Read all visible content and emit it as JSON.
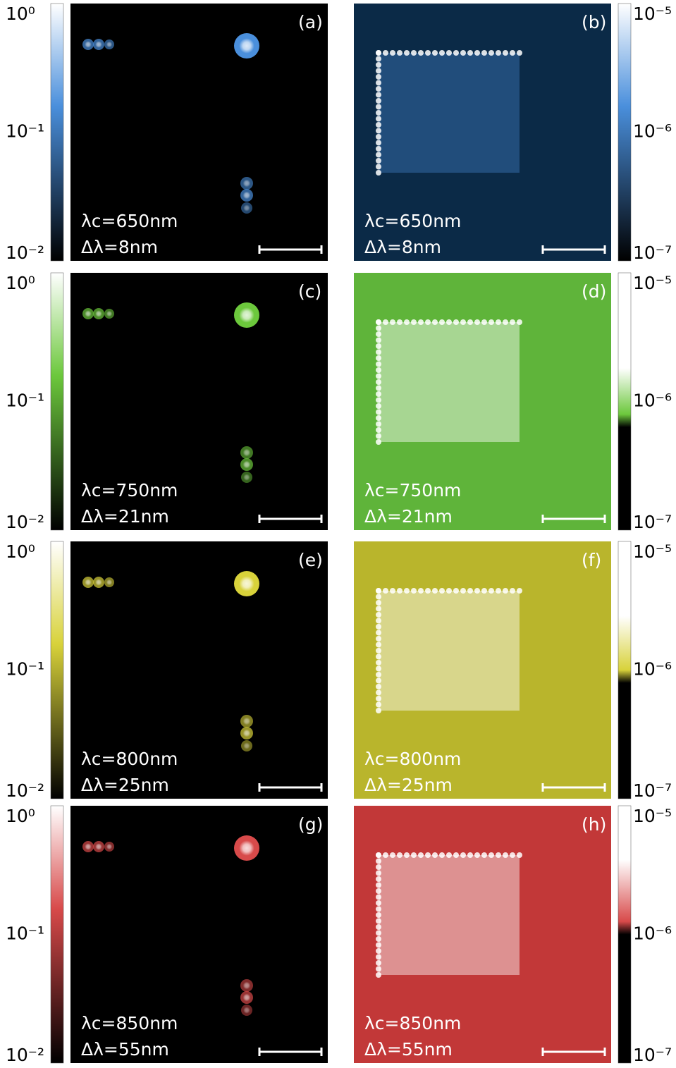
{
  "rows": [
    {
      "colorbar_left": [
        "10⁰",
        "10⁻¹",
        "10⁻²"
      ],
      "colorbar_right": [
        "10⁻⁵",
        "10⁻⁶",
        "10⁻⁷"
      ],
      "panels": [
        {
          "label": "(a)",
          "center_wavelength": "λc=650nm",
          "bandwidth": "Δλ=8nm"
        },
        {
          "label": "(b)",
          "center_wavelength": "λc=650nm",
          "bandwidth": "Δλ=8nm"
        }
      ]
    },
    {
      "colorbar_left": [
        "10⁰",
        "10⁻¹",
        "10⁻²"
      ],
      "colorbar_right": [
        "10⁻⁵",
        "10⁻⁶",
        "10⁻⁷"
      ],
      "panels": [
        {
          "label": "(c)",
          "center_wavelength": "λc=750nm",
          "bandwidth": "Δλ=21nm"
        },
        {
          "label": "(d)",
          "center_wavelength": "λc=750nm",
          "bandwidth": "Δλ=21nm"
        }
      ]
    },
    {
      "colorbar_left": [
        "10⁰",
        "10⁻¹",
        "10⁻²"
      ],
      "colorbar_right": [
        "10⁻⁵",
        "10⁻⁶",
        "10⁻⁷"
      ],
      "panels": [
        {
          "label": "(e)",
          "center_wavelength": "λc=800nm",
          "bandwidth": "Δλ=25nm"
        },
        {
          "label": "(f)",
          "center_wavelength": "λc=800nm",
          "bandwidth": "Δλ=25nm"
        }
      ]
    },
    {
      "colorbar_left": [
        "10⁰",
        "10⁻¹",
        "10⁻²"
      ],
      "colorbar_right": [
        "10⁻⁵",
        "10⁻⁶",
        "10⁻⁷"
      ],
      "panels": [
        {
          "label": "(g)",
          "center_wavelength": "λc=850nm",
          "bandwidth": "Δλ=55nm"
        },
        {
          "label": "(h)",
          "center_wavelength": "λc=850nm",
          "bandwidth": "Δλ=55nm"
        }
      ]
    }
  ]
}
